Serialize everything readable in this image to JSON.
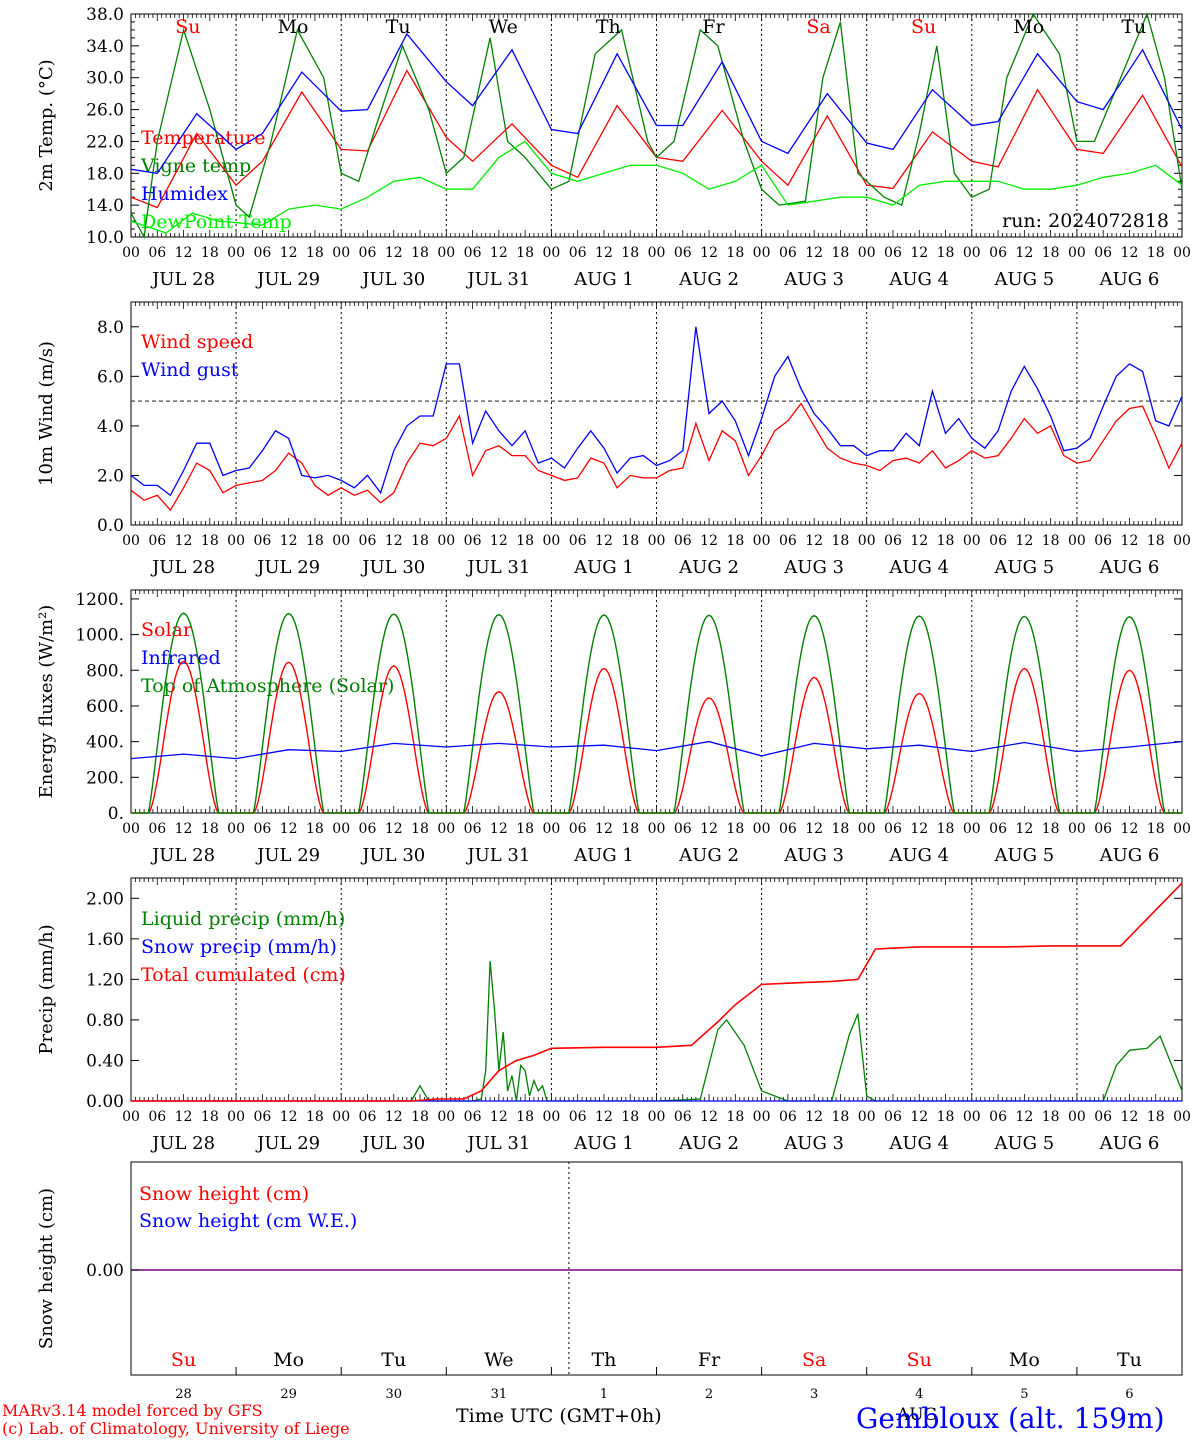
{
  "run_label": "run: 2024072818",
  "days": [
    {
      "dow": "Su",
      "weekend": true,
      "date": "JUL 28",
      "num": "28"
    },
    {
      "dow": "Mo",
      "weekend": false,
      "date": "JUL 29",
      "num": "29"
    },
    {
      "dow": "Tu",
      "weekend": false,
      "date": "JUL 30",
      "num": "30"
    },
    {
      "dow": "We",
      "weekend": false,
      "date": "JUL 31",
      "num": "31"
    },
    {
      "dow": "Th",
      "weekend": false,
      "date": "AUG  1",
      "num": "1"
    },
    {
      "dow": "Fr",
      "weekend": false,
      "date": "AUG  2",
      "num": "2"
    },
    {
      "dow": "Sa",
      "weekend": true,
      "date": "AUG  3",
      "num": "3"
    },
    {
      "dow": "Su",
      "weekend": true,
      "date": "AUG  4",
      "num": "4"
    },
    {
      "dow": "Mo",
      "weekend": false,
      "date": "AUG  5",
      "num": "5"
    },
    {
      "dow": "Tu",
      "weekend": false,
      "date": "AUG  6",
      "num": "6"
    }
  ],
  "hour_labels": [
    "00",
    "06",
    "12",
    "18"
  ],
  "final_hour_label": "00",
  "footer": {
    "credit1": "MARv3.14 model forced by GFS",
    "credit2": "(c) Lab. of Climatology, University of Liege",
    "xlabel": "Time UTC (GMT+0h)",
    "month": "AUG",
    "station": "Gembloux (alt. 159m)"
  },
  "colors": {
    "red": "#ff0000",
    "green": "#008000",
    "blue": "#0000ff",
    "lime": "#00ee00",
    "purple": "#800080"
  },
  "chart_data": [
    {
      "type": "line",
      "ylabel": "2m Temp. (°C)",
      "ylim": [
        10,
        38
      ],
      "yticks": [
        10,
        14,
        18,
        22,
        26,
        30,
        34,
        38
      ],
      "ytick_labels": [
        "10.0",
        "14.0",
        "18.0",
        "22.0",
        "26.0",
        "30.0",
        "34.0",
        "38.0"
      ],
      "xlim": [
        0,
        240
      ],
      "series": [
        {
          "name": "Temperature",
          "color": "#ff0000",
          "x": [
            0,
            6,
            15,
            24,
            30,
            39,
            48,
            54,
            63,
            72,
            78,
            87,
            96,
            102,
            111,
            120,
            126,
            135,
            144,
            150,
            159,
            168,
            174,
            183,
            192,
            198,
            207,
            216,
            222,
            231,
            240
          ],
          "y": [
            15,
            13.7,
            23,
            16.5,
            19.5,
            28.2,
            21,
            20.8,
            30.9,
            22.5,
            19.5,
            24.2,
            19,
            17.5,
            26.5,
            20,
            19.5,
            25.9,
            19.5,
            16.5,
            25.2,
            16.5,
            16.1,
            23.2,
            19.5,
            18.8,
            28.5,
            21,
            20.5,
            27.8,
            18.8
          ]
        },
        {
          "name": "Vigne temp",
          "color": "#008000",
          "x": [
            0,
            3,
            6,
            12,
            18,
            24,
            27,
            32,
            38,
            44,
            48,
            52,
            56,
            62,
            68,
            72,
            76,
            82,
            86,
            90,
            96,
            100,
            106,
            112,
            118,
            120,
            124,
            130,
            134,
            140,
            144,
            148,
            154,
            158,
            162,
            166,
            168,
            172,
            176,
            180,
            184,
            188,
            192,
            196,
            200,
            206,
            212,
            216,
            220,
            226,
            232,
            236,
            240
          ],
          "y": [
            13,
            10,
            22,
            36,
            26,
            14,
            12.5,
            22,
            36,
            30,
            18,
            17,
            24,
            34,
            26,
            18,
            20,
            35,
            22,
            20,
            16,
            17,
            33,
            36,
            22,
            20,
            22,
            36,
            34,
            22,
            16,
            14,
            14.5,
            30,
            37,
            18,
            17,
            15,
            14,
            23,
            34,
            18,
            15,
            16,
            30,
            38,
            33,
            22,
            22,
            30,
            38,
            30,
            16
          ]
        },
        {
          "name": "Humidex",
          "color": "#0000ff",
          "x": [
            0,
            6,
            15,
            24,
            30,
            39,
            48,
            54,
            63,
            72,
            78,
            87,
            96,
            102,
            111,
            120,
            126,
            135,
            144,
            150,
            159,
            168,
            174,
            183,
            192,
            198,
            207,
            216,
            222,
            231,
            240
          ],
          "y": [
            18.5,
            18,
            25.5,
            21,
            23,
            30.7,
            25.8,
            26,
            35.5,
            29.5,
            26.5,
            33.5,
            23.5,
            23,
            33,
            24,
            24,
            32,
            22,
            20.5,
            28,
            21.8,
            21,
            28.5,
            24,
            24.5,
            33,
            27,
            26,
            33.5,
            23.5
          ]
        },
        {
          "name": "DewPoint Temp",
          "color": "#00ee00",
          "x": [
            0,
            8,
            14,
            20,
            24,
            30,
            36,
            42,
            48,
            54,
            60,
            66,
            72,
            78,
            84,
            90,
            96,
            102,
            108,
            114,
            120,
            126,
            132,
            138,
            144,
            150,
            156,
            162,
            168,
            174,
            180,
            186,
            192,
            198,
            204,
            210,
            216,
            222,
            228,
            234,
            240
          ],
          "y": [
            12,
            10.5,
            13,
            12,
            11.8,
            11.5,
            13.5,
            14,
            13.5,
            15,
            17,
            17.5,
            16,
            16,
            20,
            22,
            18,
            17,
            18,
            19,
            19,
            18,
            16,
            17,
            19,
            14,
            14.5,
            15,
            15,
            14,
            16.5,
            17,
            17,
            17,
            16,
            16,
            16.5,
            17.5,
            18,
            19,
            16.5
          ]
        }
      ]
    },
    {
      "type": "line",
      "ylabel": "10m Wind (m/s)",
      "ylim": [
        0,
        9
      ],
      "yticks": [
        0,
        2,
        4,
        6,
        8
      ],
      "ytick_labels": [
        "0.0",
        "2.0",
        "4.0",
        "6.0",
        "8.0"
      ],
      "reference_line": 5,
      "xlim": [
        0,
        240
      ],
      "series": [
        {
          "name": "Wind speed",
          "color": "#ff0000",
          "x": [
            0,
            3,
            6,
            9,
            12,
            15,
            18,
            21,
            24,
            27,
            30,
            33,
            36,
            39,
            42,
            45,
            48,
            51,
            54,
            57,
            60,
            63,
            66,
            69,
            72,
            75,
            78,
            81,
            84,
            87,
            90,
            93,
            96,
            99,
            102,
            105,
            108,
            111,
            114,
            117,
            120,
            123,
            126,
            129,
            132,
            135,
            138,
            141,
            144,
            147,
            150,
            153,
            156,
            159,
            162,
            165,
            168,
            171,
            174,
            177,
            180,
            183,
            186,
            189,
            192,
            195,
            198,
            201,
            204,
            207,
            210,
            213,
            216,
            219,
            222,
            225,
            228,
            231,
            234,
            237,
            240
          ],
          "y": [
            1.4,
            1.0,
            1.2,
            0.6,
            1.5,
            2.5,
            2.2,
            1.3,
            1.6,
            1.7,
            1.8,
            2.2,
            2.9,
            2.5,
            1.6,
            1.2,
            1.5,
            1.2,
            1.4,
            0.9,
            1.3,
            2.5,
            3.3,
            3.2,
            3.5,
            4.4,
            2.0,
            3.0,
            3.2,
            2.8,
            2.8,
            2.2,
            2.0,
            1.8,
            1.9,
            2.7,
            2.5,
            1.5,
            2.0,
            1.9,
            1.9,
            2.2,
            2.3,
            4.1,
            2.6,
            3.8,
            3.4,
            2.0,
            2.8,
            3.8,
            4.2,
            4.9,
            4.0,
            3.1,
            2.7,
            2.5,
            2.4,
            2.2,
            2.6,
            2.7,
            2.5,
            3.0,
            2.3,
            2.6,
            3.0,
            2.7,
            2.8,
            3.5,
            4.3,
            3.7,
            4.0,
            2.8,
            2.5,
            2.6,
            3.4,
            4.2,
            4.7,
            4.8,
            3.6,
            2.3,
            3.3
          ]
        },
        {
          "name": "Wind gust",
          "color": "#0000ff",
          "x": [
            0,
            3,
            6,
            9,
            12,
            15,
            18,
            21,
            24,
            27,
            30,
            33,
            36,
            39,
            42,
            45,
            48,
            51,
            54,
            57,
            60,
            63,
            66,
            69,
            72,
            75,
            78,
            81,
            84,
            87,
            90,
            93,
            96,
            99,
            102,
            105,
            108,
            111,
            114,
            117,
            120,
            123,
            126,
            129,
            132,
            135,
            138,
            141,
            144,
            147,
            150,
            153,
            156,
            159,
            162,
            165,
            168,
            171,
            174,
            177,
            180,
            183,
            186,
            189,
            192,
            195,
            198,
            201,
            204,
            207,
            210,
            213,
            216,
            219,
            222,
            225,
            228,
            231,
            234,
            237,
            240
          ],
          "y": [
            2.0,
            1.6,
            1.6,
            1.2,
            2.2,
            3.3,
            3.3,
            2.0,
            2.2,
            2.3,
            3.0,
            3.8,
            3.5,
            2.0,
            1.9,
            2.0,
            1.8,
            1.5,
            2.0,
            1.3,
            3.0,
            4.0,
            4.4,
            4.4,
            6.5,
            6.5,
            3.3,
            4.6,
            3.8,
            3.2,
            3.8,
            2.5,
            2.7,
            2.3,
            3.1,
            3.8,
            3.1,
            2.1,
            2.7,
            2.8,
            2.4,
            2.6,
            3.0,
            8.0,
            4.5,
            5.0,
            4.2,
            2.8,
            4.3,
            6.0,
            6.8,
            5.5,
            4.5,
            3.9,
            3.2,
            3.2,
            2.8,
            3.0,
            3.0,
            3.7,
            3.2,
            5.4,
            3.7,
            4.3,
            3.5,
            3.1,
            3.8,
            5.4,
            6.4,
            5.5,
            4.4,
            3.0,
            3.1,
            3.5,
            4.8,
            6.0,
            6.5,
            6.2,
            4.2,
            4.0,
            5.2
          ]
        }
      ]
    },
    {
      "type": "line",
      "ylabel": "Energy fluxes (W/m²)",
      "ylim": [
        0,
        1250
      ],
      "yticks": [
        0,
        200,
        400,
        600,
        800,
        1000,
        1200
      ],
      "ytick_labels": [
        "0.",
        "200.",
        "400.",
        "600.",
        "800.",
        "1000.",
        "1200."
      ],
      "xlim": [
        0,
        240
      ],
      "daylight": {
        "sunrise_h": 4,
        "sunset_h": 20
      },
      "series": [
        {
          "name": "Solar",
          "color": "#ff0000",
          "daily_peak": [
            850,
            845,
            825,
            680,
            810,
            645,
            760,
            670,
            810,
            800
          ]
        },
        {
          "name": "Infrared",
          "color": "#0000ff",
          "x": [
            0,
            12,
            24,
            36,
            48,
            60,
            72,
            84,
            96,
            108,
            120,
            132,
            144,
            156,
            168,
            180,
            192,
            204,
            216,
            228,
            240
          ],
          "y": [
            305,
            330,
            305,
            355,
            345,
            390,
            370,
            390,
            370,
            380,
            350,
            400,
            320,
            390,
            360,
            380,
            345,
            395,
            345,
            370,
            400
          ]
        },
        {
          "name": "Top of Atmosphere (Solar)",
          "color": "#008000",
          "daily_peak": [
            1120,
            1118,
            1115,
            1112,
            1110,
            1108,
            1106,
            1104,
            1102,
            1100
          ]
        }
      ]
    },
    {
      "type": "line",
      "ylabel": "Precip (mm/h)",
      "ylim": [
        0,
        2.2
      ],
      "yticks": [
        0,
        0.4,
        0.8,
        1.2,
        1.6,
        2.0
      ],
      "ytick_labels": [
        "0.00",
        "0.40",
        "0.80",
        "1.20",
        "1.60",
        "2.00"
      ],
      "xlim": [
        0,
        240
      ],
      "series": [
        {
          "name": "Liquid precip (mm/h)",
          "color": "#008000",
          "x": [
            0,
            64,
            66,
            68,
            70,
            78,
            80,
            81,
            82,
            83,
            84,
            85,
            86,
            87,
            88,
            89,
            90,
            91,
            92,
            93,
            94,
            95,
            96,
            100,
            108,
            112,
            120,
            130,
            134,
            136,
            140,
            144,
            150,
            160,
            164,
            166,
            168,
            170,
            180,
            190,
            216,
            222,
            225,
            228,
            232,
            235,
            240
          ],
          "y": [
            0,
            0,
            0.15,
            0,
            0,
            0,
            0.02,
            0.3,
            1.38,
            0.9,
            0.3,
            0.68,
            0.1,
            0.25,
            0,
            0.35,
            0.3,
            0.05,
            0.2,
            0.1,
            0.15,
            0,
            0,
            0,
            0,
            0,
            0,
            0.02,
            0.7,
            0.8,
            0.55,
            0.1,
            0,
            0,
            0.65,
            0.86,
            0.05,
            0,
            0,
            0,
            0,
            0,
            0.35,
            0.5,
            0.52,
            0.64,
            0.1
          ]
        },
        {
          "name": "Snow precip (mm/h)",
          "color": "#0000ff",
          "x": [
            0,
            240
          ],
          "y": [
            0,
            0
          ]
        },
        {
          "name": "Total cumulated (cm)",
          "color": "#ff0000",
          "x": [
            0,
            64,
            70,
            76,
            80,
            84,
            88,
            92,
            96,
            108,
            120,
            128,
            134,
            138,
            144,
            154,
            160,
            166,
            168,
            170,
            180,
            200,
            210,
            226,
            240
          ],
          "y": [
            0,
            0,
            0.02,
            0.02,
            0.1,
            0.3,
            0.4,
            0.45,
            0.52,
            0.53,
            0.53,
            0.55,
            0.78,
            0.95,
            1.15,
            1.17,
            1.18,
            1.2,
            1.35,
            1.5,
            1.52,
            1.52,
            1.53,
            1.53,
            2.15
          ]
        }
      ]
    },
    {
      "type": "line",
      "ylabel": "Snow height (cm)",
      "ytick_labels": [
        "0.00"
      ],
      "xlim": [
        0,
        240
      ],
      "series": [
        {
          "name": "Snow height (cm)",
          "color": "#ff0000",
          "x": [
            0,
            240
          ],
          "y": [
            0,
            0
          ]
        },
        {
          "name": "Snow height (cm W.E.)",
          "color": "#0000ff",
          "x": [
            0,
            240
          ],
          "y": [
            0,
            0
          ]
        }
      ]
    }
  ]
}
